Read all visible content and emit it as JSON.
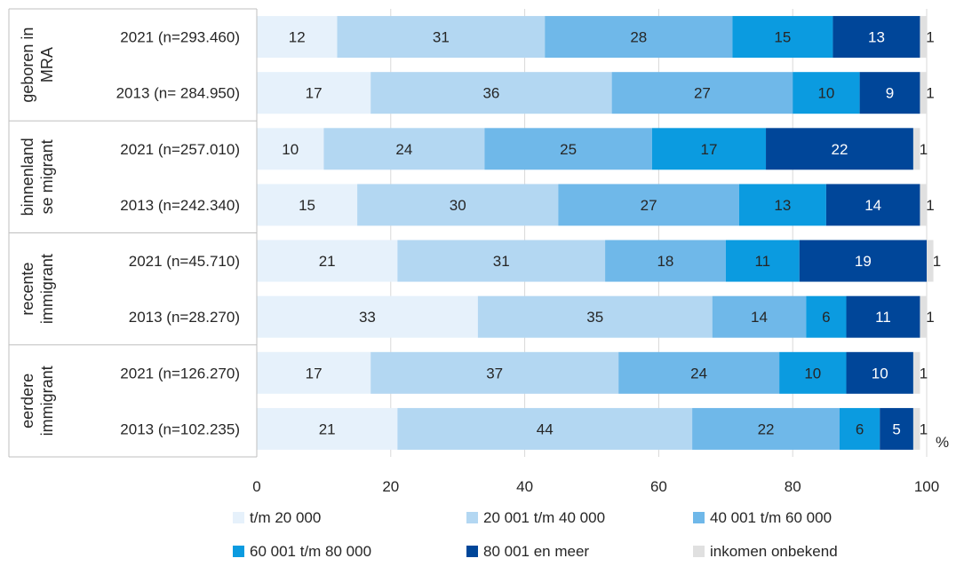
{
  "chart_data": {
    "type": "bar",
    "orientation": "horizontal",
    "stacked": true,
    "unit": "%",
    "xlim": [
      0,
      100
    ],
    "xticks": [
      0,
      20,
      40,
      60,
      80,
      100
    ],
    "grid": true,
    "legend_position": "bottom",
    "groups": [
      {
        "label": "geboren in MRA",
        "label_lines": [
          "geboren in",
          "MRA"
        ]
      },
      {
        "label": "binnenlandse migrant",
        "label_lines": [
          "binnenland",
          "se migrant"
        ]
      },
      {
        "label": "recente immigrant",
        "label_lines": [
          "recente",
          "immigrant"
        ]
      },
      {
        "label": "eerdere immigrant",
        "label_lines": [
          "eerdere",
          "immigrant"
        ]
      }
    ],
    "categories": [
      "2021 (n=293.460)",
      "2013 (n= 284.950)",
      "2021 (n=257.010)",
      "2013 (n=242.340)",
      "2021 (n=45.710)",
      "2013 (n=28.270)",
      "2021 (n=126.270)",
      "2013 (n=102.235)"
    ],
    "series": [
      {
        "name": "t/m 20 000",
        "color": "#e6f1fb",
        "values": [
          12,
          17,
          10,
          15,
          21,
          33,
          17,
          21
        ]
      },
      {
        "name": "20 001 t/m 40 000",
        "color": "#b3d7f2",
        "values": [
          31,
          36,
          24,
          30,
          31,
          35,
          37,
          44
        ]
      },
      {
        "name": "40 001 t/m 60 000",
        "color": "#6fb8e9",
        "values": [
          28,
          27,
          25,
          27,
          18,
          14,
          24,
          22
        ]
      },
      {
        "name": "60 001 t/m 80 000",
        "color": "#0b9be0",
        "values": [
          15,
          10,
          17,
          13,
          11,
          6,
          10,
          6
        ]
      },
      {
        "name": "80 001 en meer",
        "color": "#004699",
        "values": [
          13,
          9,
          22,
          14,
          19,
          11,
          10,
          5
        ]
      },
      {
        "name": "inkomen onbekend",
        "color": "#e0e0e0",
        "values": [
          1,
          1,
          1,
          1,
          1,
          1,
          1,
          1
        ]
      }
    ]
  }
}
